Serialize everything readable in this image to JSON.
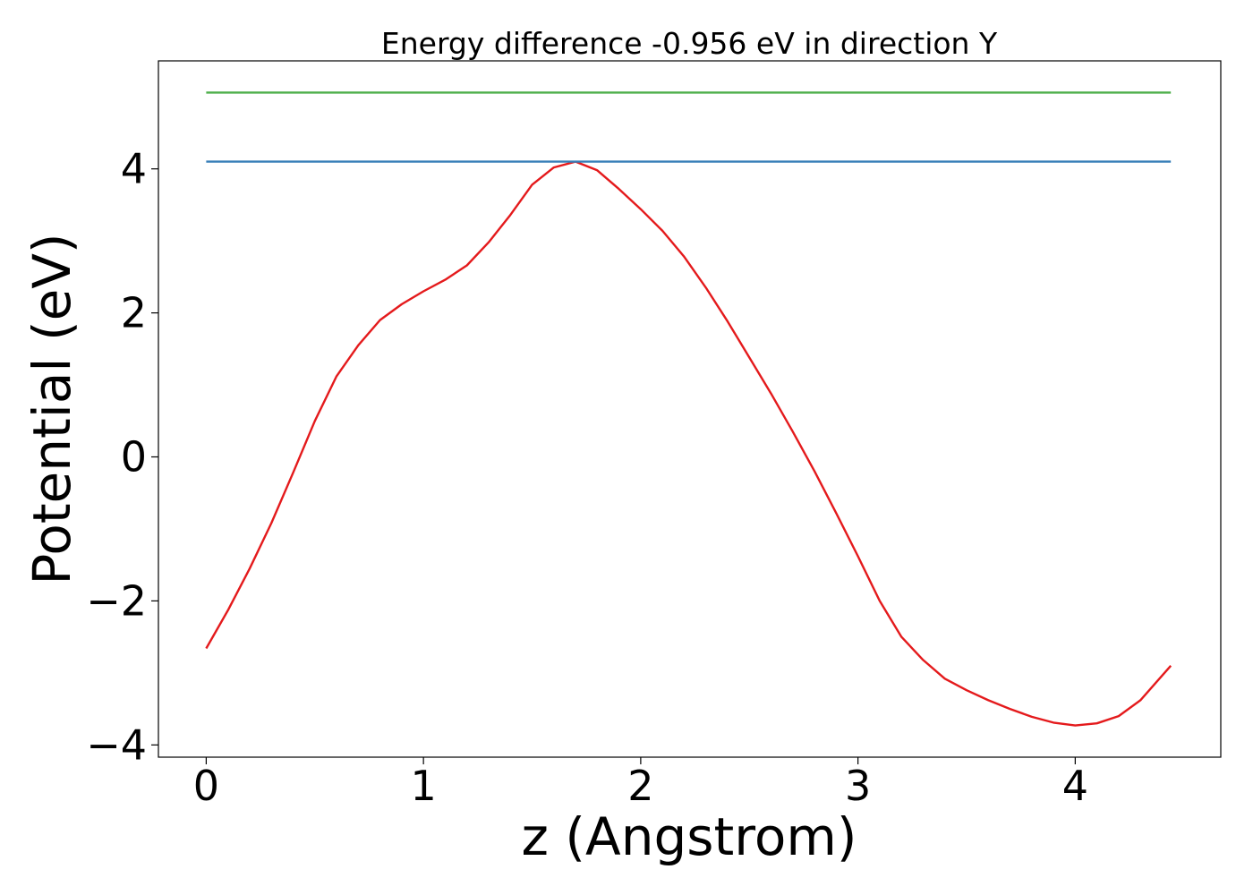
{
  "chart_data": {
    "type": "line",
    "title": "Energy difference -0.956 eV in direction Y",
    "xlabel": "z (Angstrom)",
    "ylabel": "Potential (eV)",
    "xlim": [
      -0.22,
      4.67
    ],
    "ylim": [
      -4.17,
      5.5
    ],
    "xticks": [
      0,
      1,
      2,
      3,
      4
    ],
    "xtick_labels": [
      "0",
      "1",
      "2",
      "3",
      "4"
    ],
    "yticks": [
      -4,
      -2,
      0,
      2,
      4
    ],
    "ytick_labels": [
      "−4",
      "−2",
      "0",
      "2",
      "4"
    ],
    "grid": false,
    "legend": "none",
    "series": [
      {
        "color": "#e41a1c",
        "x": [
          0,
          0.1,
          0.2,
          0.3,
          0.4,
          0.5,
          0.6,
          0.7,
          0.8,
          0.9,
          1.0,
          1.1,
          1.2,
          1.3,
          1.4,
          1.5,
          1.6,
          1.7,
          1.8,
          1.9,
          2.0,
          2.1,
          2.2,
          2.3,
          2.4,
          2.5,
          2.6,
          2.7,
          2.8,
          2.9,
          3.0,
          3.1,
          3.2,
          3.3,
          3.4,
          3.5,
          3.6,
          3.7,
          3.8,
          3.9,
          4.0,
          4.1,
          4.2,
          4.3,
          4.44
        ],
        "y": [
          -2.66,
          -2.13,
          -1.55,
          -0.92,
          -0.22,
          0.5,
          1.12,
          1.55,
          1.9,
          2.12,
          2.3,
          2.46,
          2.66,
          2.98,
          3.36,
          3.78,
          4.02,
          4.1,
          3.98,
          3.72,
          3.44,
          3.14,
          2.78,
          2.35,
          1.88,
          1.38,
          0.88,
          0.35,
          -0.2,
          -0.78,
          -1.38,
          -2.0,
          -2.5,
          -2.82,
          -3.08,
          -3.24,
          -3.38,
          -3.5,
          -3.61,
          -3.69,
          -3.73,
          -3.7,
          -3.6,
          -3.38,
          -2.9
        ]
      },
      {
        "color": "#377eb8",
        "x": [
          0,
          4.44
        ],
        "y": [
          4.1,
          4.1
        ]
      },
      {
        "color": "#4daf4a",
        "x": [
          0,
          4.44
        ],
        "y": [
          5.06,
          5.06
        ]
      }
    ]
  }
}
